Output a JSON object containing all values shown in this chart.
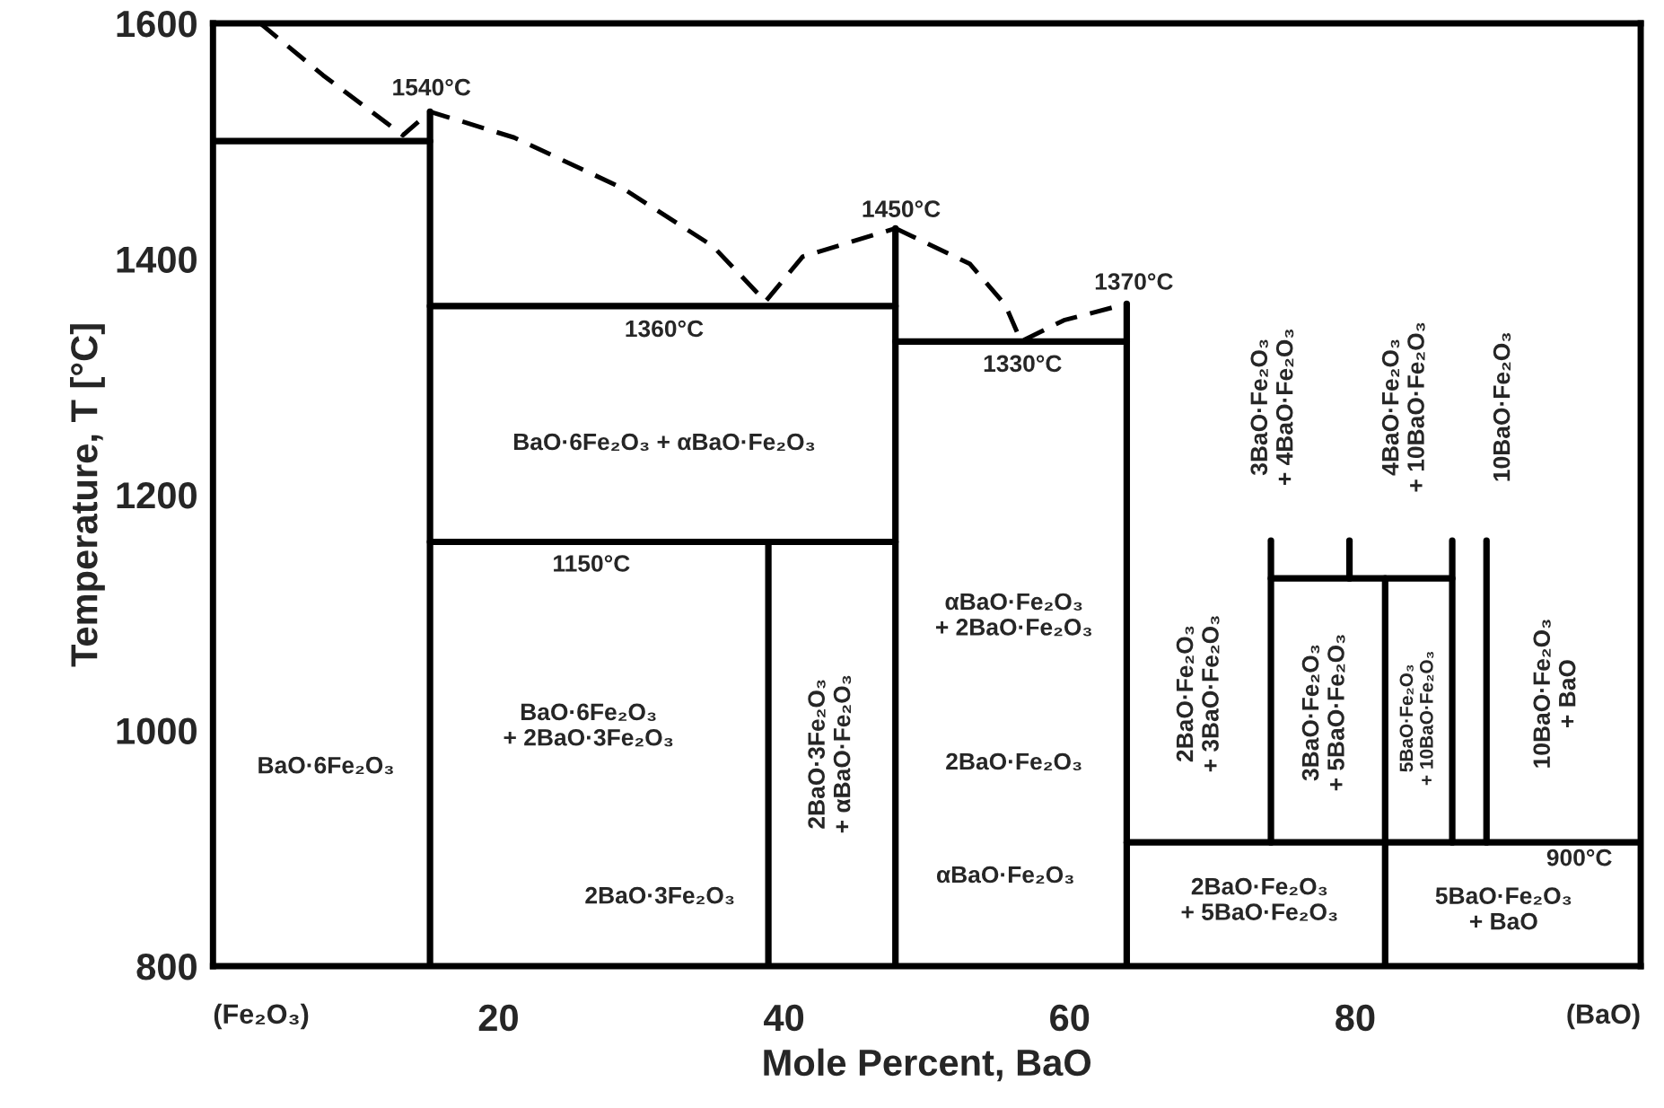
{
  "chart_data": {
    "type": "line",
    "xlabel": "Mole Percent, BaO",
    "ylabel": "Temperature, T [°C]",
    "xlim": [
      0,
      100
    ],
    "ylim": [
      800,
      1600
    ],
    "xticks": [
      {
        "value": 0,
        "label": "(Fe₂O₃)"
      },
      20,
      40,
      60,
      80,
      {
        "value": 100,
        "label": "(BaO)"
      }
    ],
    "yticks": [
      800,
      1000,
      1200,
      1400,
      1600
    ],
    "series": [
      {
        "color": "#000000",
        "line_style": "solid",
        "x": [
          0,
          15.2
        ],
        "values": [
          1500,
          1500
        ]
      },
      {
        "color": "#000000",
        "line_style": "solid",
        "x": [
          15.2,
          15.2
        ],
        "values": [
          800,
          1525
        ]
      },
      {
        "color": "#000000",
        "line_style": "dashed",
        "x": [
          3.3,
          7.7,
          13.3,
          15.2,
          21.1,
          28.7,
          35,
          38.7,
          41.3,
          47.8
        ],
        "values": [
          1600,
          1556,
          1505,
          1525,
          1503,
          1460,
          1411,
          1364,
          1402,
          1426
        ]
      },
      {
        "color": "#000000",
        "line_style": "solid",
        "x": [
          15.2,
          47.8
        ],
        "values": [
          1360,
          1360
        ]
      },
      {
        "color": "#000000",
        "line_style": "solid",
        "x": [
          15.2,
          47.8
        ],
        "values": [
          1160,
          1160
        ]
      },
      {
        "color": "#000000",
        "line_style": "solid",
        "x": [
          38.9,
          38.9
        ],
        "values": [
          800,
          1160
        ]
      },
      {
        "color": "#000000",
        "line_style": "solid",
        "x": [
          47.8,
          47.8
        ],
        "values": [
          800,
          1426
        ]
      },
      {
        "color": "#000000",
        "line_style": "solid",
        "x": [
          47.8,
          64
        ],
        "values": [
          1330,
          1330
        ]
      },
      {
        "color": "#000000",
        "line_style": "dashed",
        "x": [
          47.8,
          53,
          55.5,
          56.6,
          59.6,
          64
        ],
        "values": [
          1426,
          1396,
          1361,
          1330,
          1348,
          1362
        ]
      },
      {
        "color": "#000000",
        "line_style": "solid",
        "x": [
          64,
          64
        ],
        "values": [
          800,
          1362
        ]
      },
      {
        "color": "#000000",
        "line_style": "solid",
        "x": [
          64,
          100
        ],
        "values": [
          905,
          905
        ]
      },
      {
        "color": "#000000",
        "line_style": "solid",
        "x": [
          74.1,
          74.1
        ],
        "values": [
          905,
          1161
        ]
      },
      {
        "color": "#000000",
        "line_style": "solid",
        "x": [
          74.1,
          86.8
        ],
        "values": [
          1129,
          1129
        ]
      },
      {
        "color": "#000000",
        "line_style": "solid",
        "x": [
          79.6,
          79.6
        ],
        "values": [
          1129,
          1161
        ]
      },
      {
        "color": "#000000",
        "line_style": "solid",
        "x": [
          82.1,
          82.1
        ],
        "values": [
          800,
          1129
        ]
      },
      {
        "color": "#000000",
        "line_style": "solid",
        "x": [
          86.8,
          86.8
        ],
        "values": [
          905,
          1161
        ]
      },
      {
        "color": "#000000",
        "line_style": "solid",
        "x": [
          89.2,
          89.2
        ],
        "values": [
          905,
          1161
        ]
      }
    ],
    "annotations": [
      "1540°C",
      "1450°C",
      "1370°C",
      "1360°C",
      "1330°C",
      "1150°C",
      "BaO·6Fe₂O₃ + αBaO·Fe₂O₃",
      "BaO·6Fe₂O₃",
      "BaO·6Fe₂O₃\n+ 2BaO·3Fe₂O₃",
      "2BaO·3Fe₂O₃",
      "2BaO·3Fe₂O₃\n+ αBaO·Fe₂O₃",
      "αBaO·Fe₂O₃\n+ 2BaO·Fe₂O₃",
      "2BaO·Fe₂O₃",
      "αBaO·Fe₂O₃",
      "2BaO·Fe₂O₃\n+ 3BaO·Fe₂O₃",
      "3BaO·Fe₂O₃\n+ 5BaO·Fe₂O₃",
      "5BaO·Fe₂O₃\n+ 10BaO·Fe₂O₃",
      "10BaO·Fe₂O₃\n+ BaO",
      "2BaO·Fe₂O₃\n+ 5BaO·Fe₂O₃",
      "900°C",
      "5BaO·Fe₂O₃\n+ BaO",
      "3BaO·Fe₂O₃\n+ 4BaO·Fe₂O₃",
      "4BaO·Fe₂O₃\n+ 10BaO·Fe₂O₃",
      "10BaO·Fe₂O₃"
    ]
  }
}
